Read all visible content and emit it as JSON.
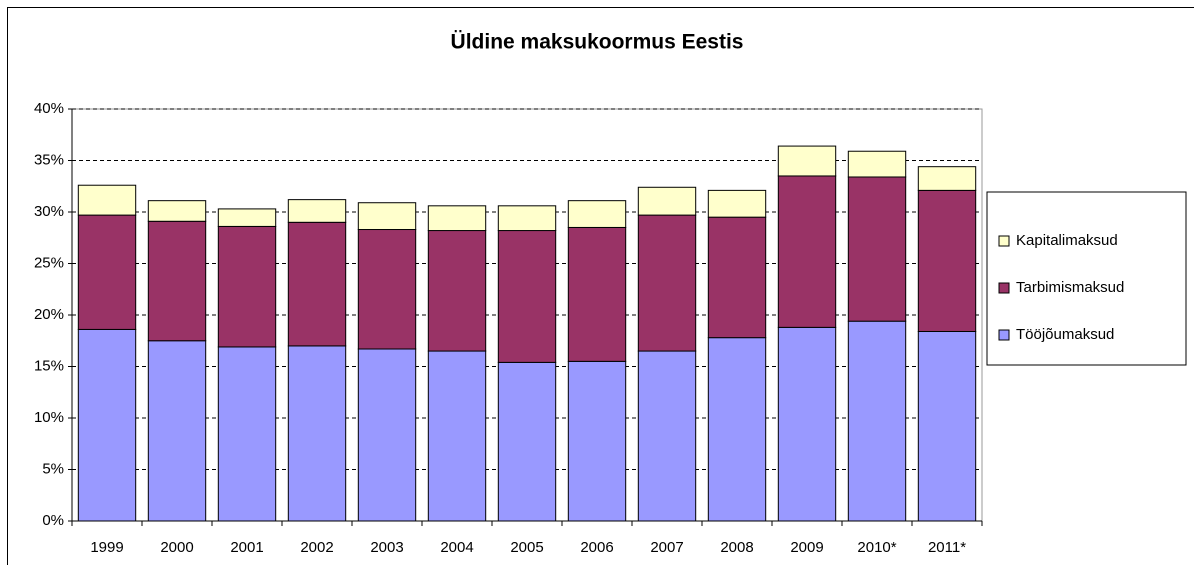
{
  "chart_data": {
    "type": "stacked_bar",
    "title": "Üldine maksukoormus Eestis",
    "categories": [
      "1999",
      "2000",
      "2001",
      "2002",
      "2003",
      "2004",
      "2005",
      "2006",
      "2007",
      "2008",
      "2009",
      "2010*",
      "2011*"
    ],
    "series": [
      {
        "name": "Tööjõumaksud",
        "color": "#9999ff",
        "values": [
          18.6,
          17.5,
          16.9,
          17.0,
          16.7,
          16.5,
          15.4,
          15.5,
          16.5,
          17.8,
          18.8,
          19.4,
          18.4
        ]
      },
      {
        "name": "Tarbimismaksud",
        "color": "#993366",
        "values": [
          11.1,
          11.6,
          11.7,
          12.0,
          11.6,
          11.7,
          12.8,
          13.0,
          13.2,
          11.7,
          14.7,
          14.0,
          13.7
        ]
      },
      {
        "name": "Kapitalimaksud",
        "color": "#ffffcc",
        "values": [
          2.9,
          2.0,
          1.7,
          2.2,
          2.6,
          2.4,
          2.4,
          2.6,
          2.7,
          2.6,
          2.9,
          2.5,
          2.3
        ]
      }
    ],
    "ylim": [
      0,
      40
    ],
    "yticks": [
      {
        "value": 0,
        "label": "0%"
      },
      {
        "value": 5,
        "label": "5%"
      },
      {
        "value": 10,
        "label": "10%"
      },
      {
        "value": 15,
        "label": "15%"
      },
      {
        "value": 20,
        "label": "20%"
      },
      {
        "value": 25,
        "label": "25%"
      },
      {
        "value": 30,
        "label": "30%"
      },
      {
        "value": 35,
        "label": "35%"
      },
      {
        "value": 40,
        "label": "40%"
      }
    ],
    "grid": true,
    "legend": "right"
  }
}
